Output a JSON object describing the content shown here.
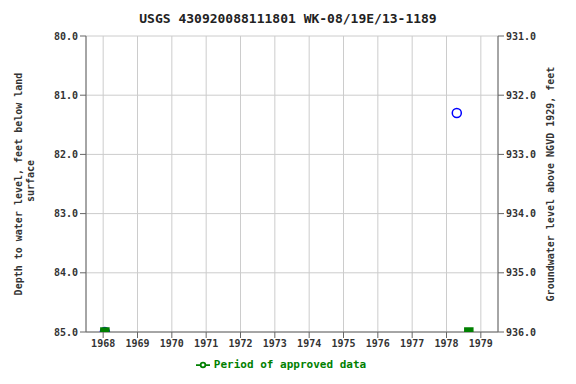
{
  "chart_data": {
    "type": "scatter",
    "title": "USGS 430920088111801 WK-08/19E/13-1189",
    "ylabel": "Depth to water level, feet below land\n surface",
    "y2label": "Groundwater level above NGVD 1929, feet",
    "xlim": [
      1967.5,
      1979.5
    ],
    "xticks": [
      1968,
      1969,
      1970,
      1971,
      1972,
      1973,
      1974,
      1975,
      1976,
      1977,
      1978,
      1979
    ],
    "ylim": [
      85,
      80
    ],
    "yticks": [
      {
        "value": 80,
        "label": "80.0"
      },
      {
        "value": 81,
        "label": "81.0"
      },
      {
        "value": 82,
        "label": "82.0"
      },
      {
        "value": 83,
        "label": "83.0"
      },
      {
        "value": 84,
        "label": "84.0"
      },
      {
        "value": 85,
        "label": "85.0"
      }
    ],
    "y2lim": [
      936,
      931
    ],
    "y2ticks": [
      {
        "value": 936,
        "label": "936.0"
      },
      {
        "value": 935,
        "label": "935.0"
      },
      {
        "value": 934,
        "label": "934.0"
      },
      {
        "value": 933,
        "label": "933.0"
      },
      {
        "value": 932,
        "label": "932.0"
      },
      {
        "value": 931,
        "label": "931.0"
      }
    ],
    "grid": true,
    "legend": "bottom",
    "series": [
      {
        "color": "blue",
        "marker": "circle",
        "x": [
          1968.05,
          1978.3
        ],
        "values": [
          85.0,
          81.3
        ]
      },
      {
        "name": "Period of approved data",
        "color": "#008000",
        "marker": "square",
        "x": [
          1968.05,
          1978.65
        ],
        "values": [
          85.0,
          85.0
        ]
      }
    ]
  }
}
